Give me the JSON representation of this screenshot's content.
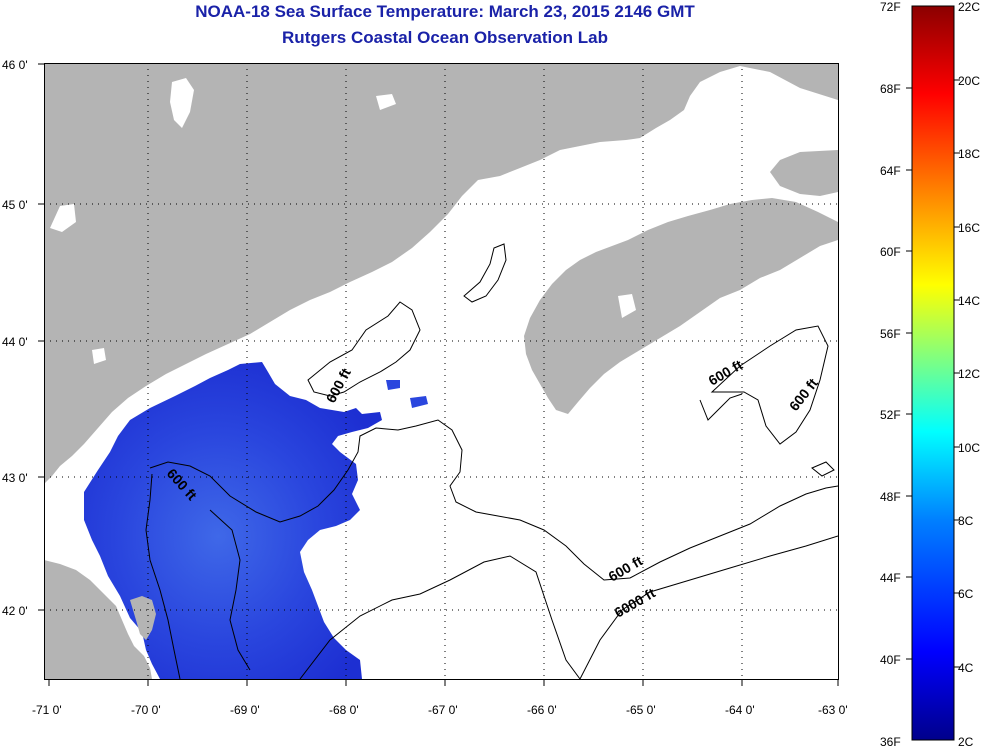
{
  "title": {
    "line1": "NOAA-18 Sea Surface Temperature:  March 23, 2015 2146 GMT",
    "line2": "Rutgers Coastal Ocean Observation Lab"
  },
  "map": {
    "longitude_labels": [
      "-71 0'",
      "-70 0'",
      "-69 0'",
      "-68 0'",
      "-67 0'",
      "-66 0'",
      "-65 0'",
      "-64 0'",
      "-63 0'"
    ],
    "latitude_labels": [
      "46 0'",
      "45 0'",
      "44 0'",
      "43 0'",
      "42 0'"
    ],
    "contour_labels": [
      "600 ft",
      "600 ft",
      "600 ft",
      "600 ft",
      "600 ft",
      "6000 ft"
    ],
    "colors": {
      "land": "#b4b4b4",
      "ocean_nodata": "#ffffff",
      "sst_cold": "#2233dd",
      "contour": "#000000"
    }
  },
  "colorbar": {
    "fahrenheit_labels": [
      "72F",
      "68F",
      "64F",
      "60F",
      "56F",
      "52F",
      "48F",
      "44F",
      "40F",
      "36F"
    ],
    "celsius_labels": [
      "22C",
      "20C",
      "18C",
      "16C",
      "14C",
      "12C",
      "10C",
      "8C",
      "6C",
      "4C",
      "2C"
    ],
    "colors": [
      "#00008b",
      "#0000ff",
      "#0080ff",
      "#00ffff",
      "#80ff80",
      "#ffff00",
      "#ff8000",
      "#ff0000",
      "#8b0000"
    ]
  }
}
